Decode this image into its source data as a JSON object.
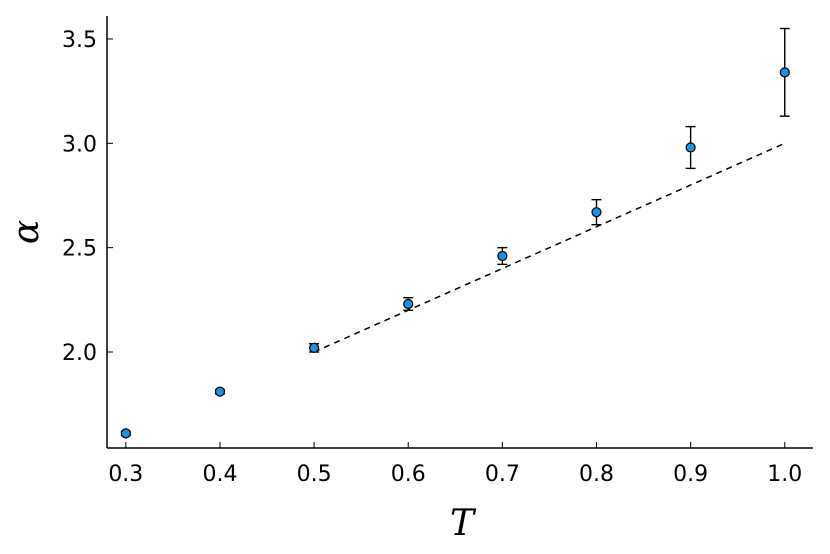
{
  "chart_data": {
    "type": "scatter",
    "xlabel": "T",
    "ylabel": "α",
    "xlim": [
      0.28,
      1.03
    ],
    "ylim": [
      1.54,
      3.61
    ],
    "x_ticks": [
      0.3,
      0.4,
      0.5,
      0.6,
      0.7,
      0.8,
      0.9,
      1.0
    ],
    "x_tick_labels": [
      "0.3",
      "0.4",
      "0.5",
      "0.6",
      "0.7",
      "0.8",
      "0.9",
      "1.0"
    ],
    "y_ticks": [
      2.0,
      2.5,
      3.0,
      3.5
    ],
    "y_tick_labels": [
      "2.0",
      "2.5",
      "3.0",
      "3.5"
    ],
    "grid": false,
    "series": [
      {
        "kind": "scatter-errorbar",
        "color": "#1f8fe0",
        "x": [
          0.3,
          0.4,
          0.5,
          0.6,
          0.7,
          0.8,
          0.9,
          1.0
        ],
        "y": [
          1.61,
          1.81,
          2.02,
          2.23,
          2.46,
          2.67,
          2.98,
          3.34
        ],
        "err": [
          0.01,
          0.01,
          0.02,
          0.03,
          0.04,
          0.06,
          0.1,
          0.21
        ]
      },
      {
        "kind": "line",
        "style": "dashed",
        "color": "#000000",
        "x": [
          0.5,
          1.0
        ],
        "y": [
          2.0,
          3.0
        ]
      }
    ]
  }
}
